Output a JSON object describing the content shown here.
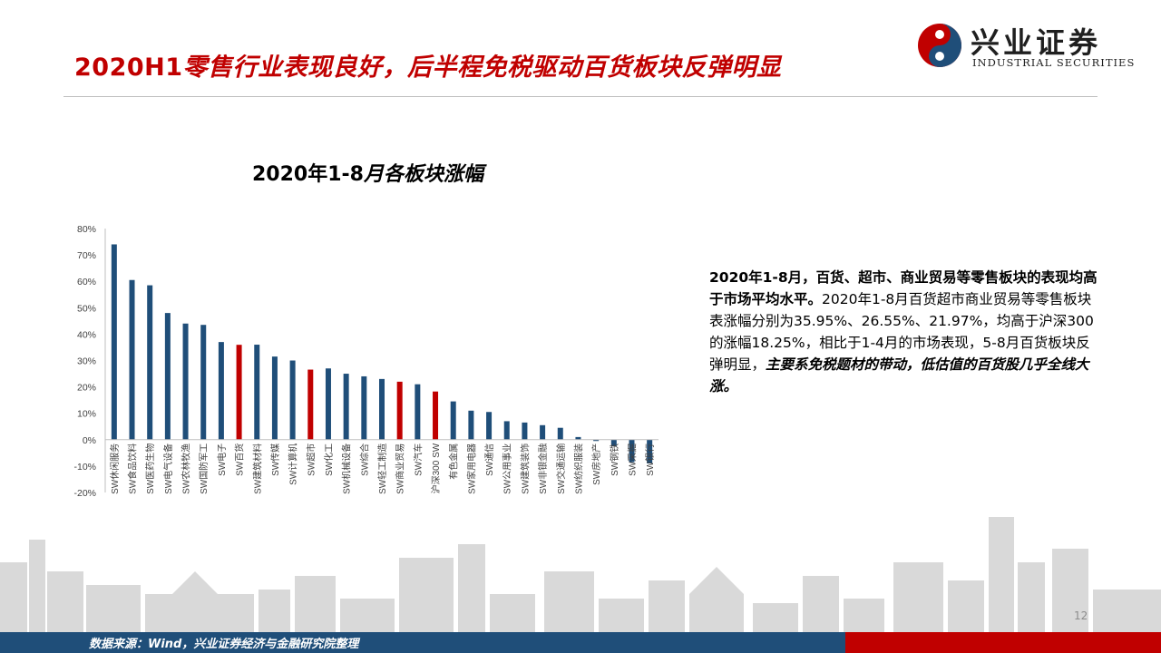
{
  "header": {
    "title_prefix": "2020H1",
    "title_rest": "零售行业表现良好，后半程免税驱动百货板块反弹明显"
  },
  "logo": {
    "name_cn": "兴业证券",
    "name_en": "INDUSTRIAL SECURITIES",
    "colors": [
      "#c00000",
      "#1f4e79"
    ]
  },
  "chart_title": {
    "part1": "2020年1-8",
    "part2": "月各板块涨幅"
  },
  "chart_data": {
    "type": "bar",
    "ylim": [
      -0.2,
      0.8
    ],
    "yticks": [
      "80%",
      "70%",
      "60%",
      "50%",
      "40%",
      "30%",
      "20%",
      "10%",
      "0%",
      "-10%",
      "-20%"
    ],
    "grid": false,
    "legend": "none",
    "categories": [
      "SW休闲服务",
      "SW食品饮料",
      "SW医药生物",
      "SW电气设备",
      "SW农林牧渔",
      "SW国防军工",
      "SW电子",
      "SW百货",
      "SW建筑材料",
      "SW传媒",
      "SW计算机",
      "SW超市",
      "SW化工",
      "SW机械设备",
      "SW综合",
      "SW轻工制造",
      "SW商业贸易",
      "SW汽车",
      "沪深300 SW",
      "有色金属",
      "SW家用电器",
      "SW通信",
      "SW公用事业",
      "SW建筑装饰",
      "SW非银金融",
      "SW交通运输",
      "SW纺织服装",
      "SW房地产",
      "SW钢铁",
      "SW采掘",
      "SW银行"
    ],
    "values": [
      0.74,
      0.605,
      0.585,
      0.48,
      0.44,
      0.435,
      0.37,
      0.3595,
      0.36,
      0.315,
      0.3,
      0.2655,
      0.27,
      0.25,
      0.24,
      0.23,
      0.2197,
      0.21,
      0.1825,
      0.145,
      0.11,
      0.105,
      0.07,
      0.065,
      0.055,
      0.045,
      0.01,
      -0.005,
      -0.025,
      -0.085,
      -0.09
    ],
    "highlighted": [
      "SW百货",
      "SW超市",
      "SW商业贸易",
      "沪深300 SW"
    ],
    "colors": {
      "default": "#1f4e79",
      "highlight": "#c00000"
    }
  },
  "commentary": {
    "bold": "2020年1-8月，百货、超市、商业贸易等零售板块的表现均高于市场平均水平。",
    "normal": "2020年1-8月百货超市商业贸易等零售板块表涨幅分别为35.95%、26.55%、21.97%，均高于沪深300的涨幅18.25%，相比于1-4月的市场表现，5-8月百货板块反弹明显，",
    "bold_italic": "主要系免税题材的带动，低估值的百货股几乎全线大涨。"
  },
  "footer": {
    "source": "数据来源：Wind，兴业证券经济与金融研究院整理",
    "page_number": "12"
  }
}
